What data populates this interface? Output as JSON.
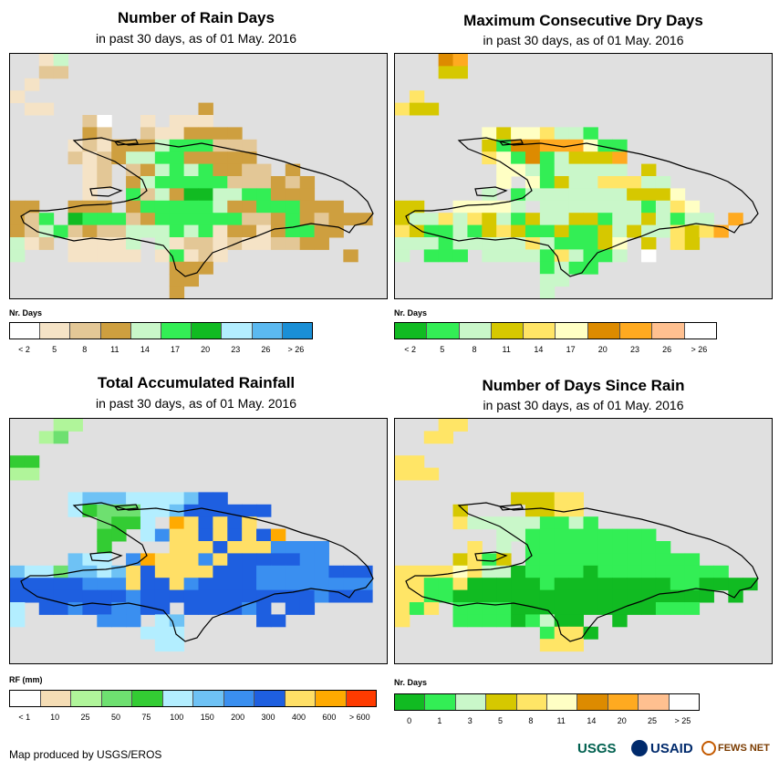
{
  "panels": [
    {
      "title": "Number of Rain Days",
      "subtitle": "in past 30 days, as of 01 May. 2016",
      "legend_title": "Nr. Days",
      "legend_colors": [
        "#ffffff",
        "#f5e3c6",
        "#e3c796",
        "#ce9f3f",
        "#c9f7c9",
        "#33ee55",
        "#11bb22",
        "#b3eeff",
        "#5bb9f0",
        "#1a8fd6"
      ],
      "legend_labels": [
        "< 2",
        "5",
        "8",
        "11",
        "14",
        "17",
        "20",
        "23",
        "26",
        "> 26"
      ],
      "grid": [
        "..14......................",
        "..22......................",
        ".1........................",
        "1.........................",
        ".11..........3............",
        ".....20..1.111............",
        ".....32..2113333..........",
        "....1213334555222.........",
        "....2123445533333.........",
        ".....12.2345453322.3......",
        ".....12.3455555222323.....",
        ".....1..5243664455333.....",
        "33..333.355555433555333...",
        "325.655523555555223532333.",
        "32452322444545133135533...",
        "412.11114.412212112233....",
        "4...11111.15121........3..",
        "...........333............",
        "...........33.............",
        "...........3.............."
      ]
    },
    {
      "title": "Maximum Consecutive Dry Days",
      "subtitle": "in past 30 days, as of 01 May. 2016",
      "legend_title": "Nr. Days",
      "legend_colors": [
        "#11bb22",
        "#33ee55",
        "#c9f7c9",
        "#d6c800",
        "#ffe566",
        "#ffffc4",
        "#dd8b00",
        "#ffaa20",
        "#ffc090",
        "#ffffff"
      ],
      "legend_labels": [
        "< 2",
        "5",
        "8",
        "11",
        "14",
        "17",
        "20",
        "23",
        "26",
        "> 26"
      ],
      "grid": [
        "...67.....................",
        "...33.....................",
        "..........................",
        ".4........................",
        "433.......................",
        ".........................",
        "......53554221............",
        "......3166777511..........",
        "......4516123337..........",
        ".......552122222.3........",
        ".......5.5132244422.......",
        "......2.122222223335......",
        "33..55552.22222221245.....",
        "3224243213223312232122.7..",
        "43112134311311323224347...",
        "2221222224211135.3.43.....",
        "2.111.2222142112.9........",
        "..........1211............",
        "..........22..............",
        "..........2..............."
      ]
    },
    {
      "title": "Total Accumulated Rainfall",
      "subtitle": "in past 30 days, as of 01 May. 2016",
      "legend_title": "RF (mm)",
      "legend_colors": [
        "#ffffff",
        "#f5ddb5",
        "#b0f59a",
        "#6ee070",
        "#33cc33",
        "#b3eeff",
        "#6ec2f5",
        "#3a8ff0",
        "#1e5fe0",
        "#ffdf66",
        "#ffaa00",
        "#ff3b00"
      ],
      "legend_labels": [
        "< 1",
        "10",
        "25",
        "50",
        "75",
        "100",
        "150",
        "200",
        "300",
        "400",
        "600",
        "> 600"
      ],
      "grid": [
        "...22.....................",
        "..23......................",
        "..........................",
        "44........................",
        "22........................",
        ".........................",
        "....56665555688...........",
        "....54333556888888........",
        "......3445.A98989.........",
        "......44.579989898A.......",
        "......4....99989997777....",
        "....655.7A999798888877....",
        "6553665698999988877777888.",
        "8888877798897888877777777.",
        "8888888878888888888887888.",
        "5.887887788.888878.88.....",
        "5.....777.56.....88.......",
        ".........555..............",
        "..........55..............",
        ".........................."
      ]
    },
    {
      "title": "Number of Days Since Rain",
      "subtitle": "in past 30 days, as of 01 May. 2016",
      "legend_title": "Nr. Days",
      "legend_colors": [
        "#11bb22",
        "#33ee55",
        "#c9f7c9",
        "#d6c800",
        "#ffe566",
        "#ffffc4",
        "#dd8b00",
        "#ffaa20",
        "#ffc090",
        "#ffffff"
      ],
      "legend_labels": [
        "0",
        "1",
        "3",
        "5",
        "8",
        "11",
        "14",
        "20",
        "25",
        "> 25"
      ],
      "grid": [
        "...44.....................",
        "..44......................",
        "..........................",
        "44........................",
        "444.......................",
        ".........................",
        "........33344.............",
        "....3....3344.............",
        "....4222221121............",
        ".......22111111111........",
        ".....4.2.1111111111.......",
        "....3413.111111111111.....",
        "44445422011110111111111...",
        "4411400000100000000110000.",
        "4411000000000000000000.0..",
        "414.11110000000000111.....",
        "4...111101200..0..........",
        "..........1440............",
        "..........444.............",
        ".........................."
      ]
    }
  ],
  "credit": "Map produced by USGS/EROS",
  "logos": [
    "USGS",
    "USAID",
    "FEWS NET"
  ]
}
